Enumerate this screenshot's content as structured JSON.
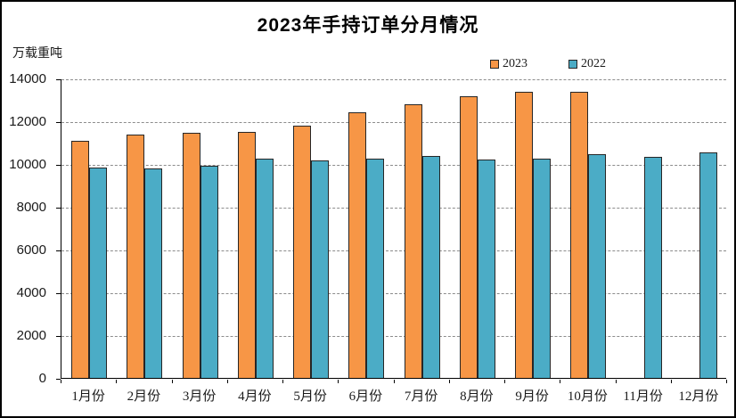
{
  "window": {
    "background": "#ffffff",
    "border_color": "#000000"
  },
  "chart_data": {
    "type": "bar",
    "title": "2023年手持订单分月情况",
    "ylabel": "万载重吨",
    "xlabel": "",
    "categories": [
      "1月份",
      "2月份",
      "3月份",
      "4月份",
      "5月份",
      "6月份",
      "7月份",
      "8月份",
      "9月份",
      "10月份",
      "11月份",
      "12月份"
    ],
    "series": [
      {
        "name": "2023",
        "color": "#F79646",
        "values": [
          11100,
          11380,
          11450,
          11510,
          11800,
          12400,
          12800,
          13160,
          13390,
          13380,
          null,
          null
        ]
      },
      {
        "name": "2022",
        "color": "#4BACC6",
        "values": [
          9850,
          9800,
          9900,
          10250,
          10170,
          10270,
          10370,
          10210,
          10250,
          10440,
          10340,
          10550
        ]
      }
    ],
    "ylim": [
      0,
      14000
    ],
    "ytick_step": 2000,
    "yticks": [
      "0",
      "2000",
      "4000",
      "6000",
      "8000",
      "10000",
      "12000",
      "14000"
    ],
    "grid": "horizontal-dashed",
    "gridline_color": "#8c8c8c",
    "axis_color": "#000000",
    "bar_border_color": "#262626",
    "legend_position": "top-right"
  }
}
